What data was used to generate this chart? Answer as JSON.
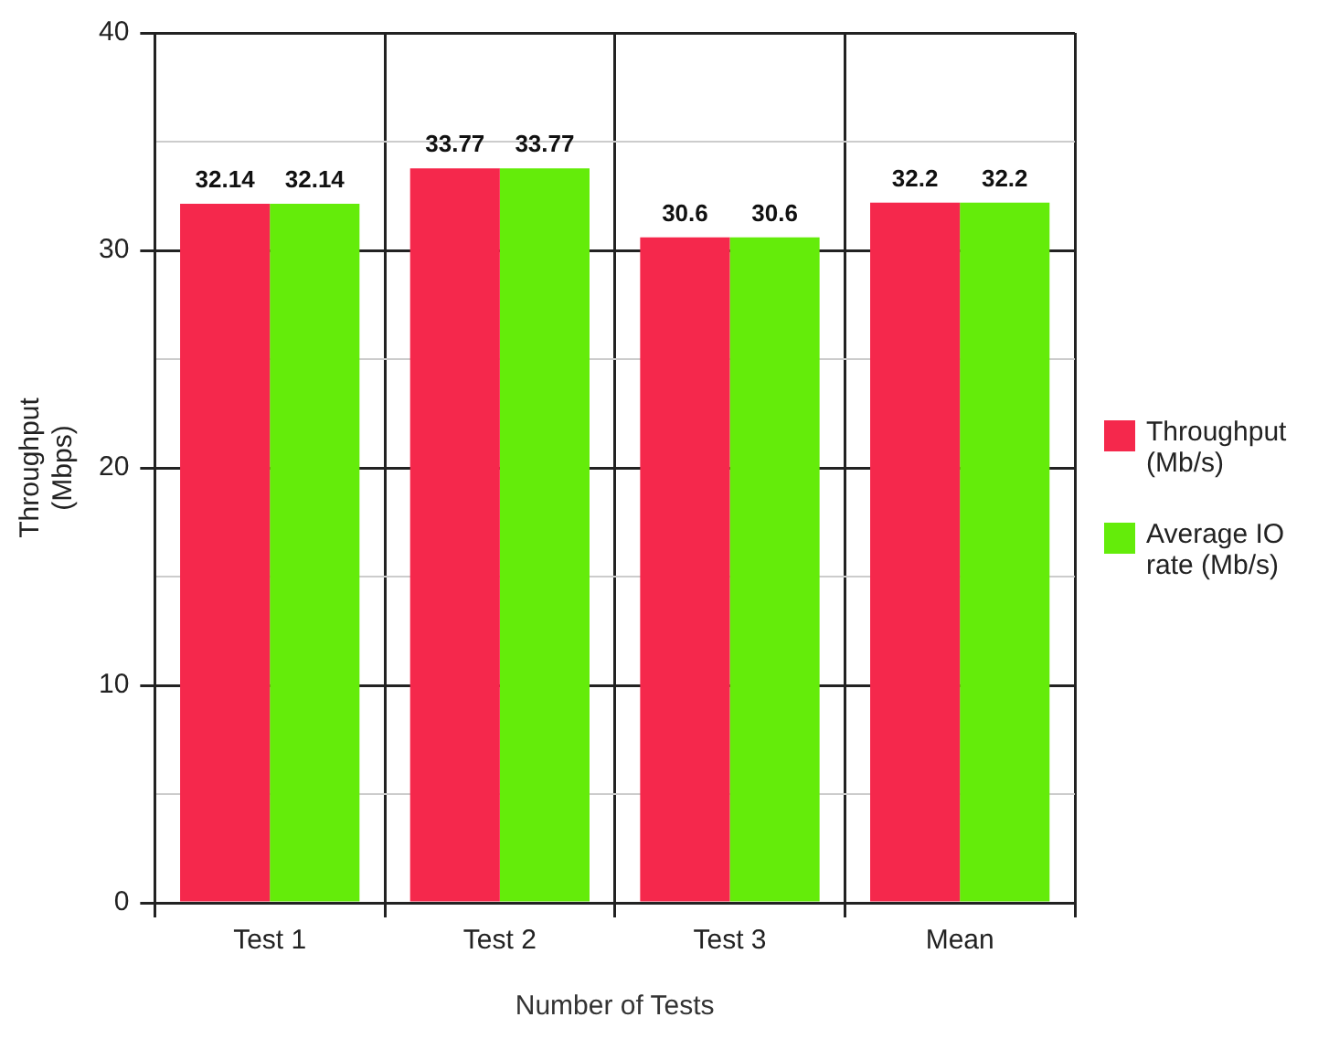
{
  "chart_data": {
    "type": "bar",
    "categories": [
      "Test 1",
      "Test 2",
      "Test 3",
      "Mean"
    ],
    "series": [
      {
        "name": "Throughput (Mb/s)",
        "color": "#f5284c",
        "values": [
          32.14,
          33.77,
          30.6,
          32.2
        ]
      },
      {
        "name": "Average IO rate (Mb/s)",
        "color": "#64ec0a",
        "values": [
          32.14,
          33.77,
          30.6,
          32.2
        ]
      }
    ],
    "xlabel": "Number of Tests",
    "ylabel": "Throughput (Mbps)",
    "ylim": [
      0,
      40
    ],
    "yticks": [
      0,
      {
        "value": 5,
        "label": null
      },
      10,
      {
        "value": 15,
        "label": null
      },
      20,
      {
        "value": 25,
        "label": null
      },
      30,
      {
        "value": 35,
        "label": null
      },
      40
    ],
    "grid": true,
    "legend": "right",
    "data_labels": true
  }
}
